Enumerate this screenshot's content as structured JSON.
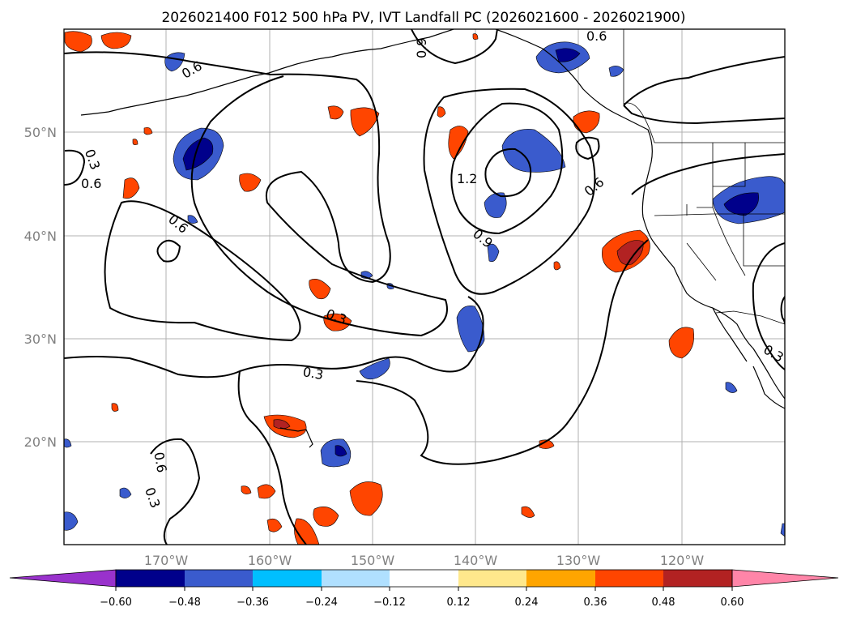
{
  "title": "2026021400 F012 500 hPa PV, IVT Landfall PC (2026021600 - 2026021900)",
  "map": {
    "lon_ticks": [
      "170°W",
      "160°W",
      "150°W",
      "140°W",
      "130°W",
      "120°W"
    ],
    "lat_ticks": [
      "50°N",
      "40°N",
      "30°N",
      "20°N"
    ],
    "gridlines": true,
    "contour_labels": [
      "0.6",
      "0.3",
      "0.6",
      "0.9",
      "0.6",
      "1.2",
      "0.9",
      "0.6",
      "0.3",
      "0.3",
      "0.6",
      "0.3",
      "0.3",
      "0.6"
    ]
  },
  "colorbar": {
    "ticks": [
      "−0.60",
      "−0.48",
      "−0.36",
      "−0.24",
      "−0.12",
      "0.12",
      "0.24",
      "0.36",
      "0.48",
      "0.60"
    ],
    "colors": [
      "#9932cc",
      "#00008b",
      "#3a5bcd",
      "#00bfff",
      "#b0e0ff",
      "#ffffff",
      "#ffe88c",
      "#ffa500",
      "#ff4500",
      "#b22222",
      "#ff85a8"
    ],
    "extend": "both"
  }
}
